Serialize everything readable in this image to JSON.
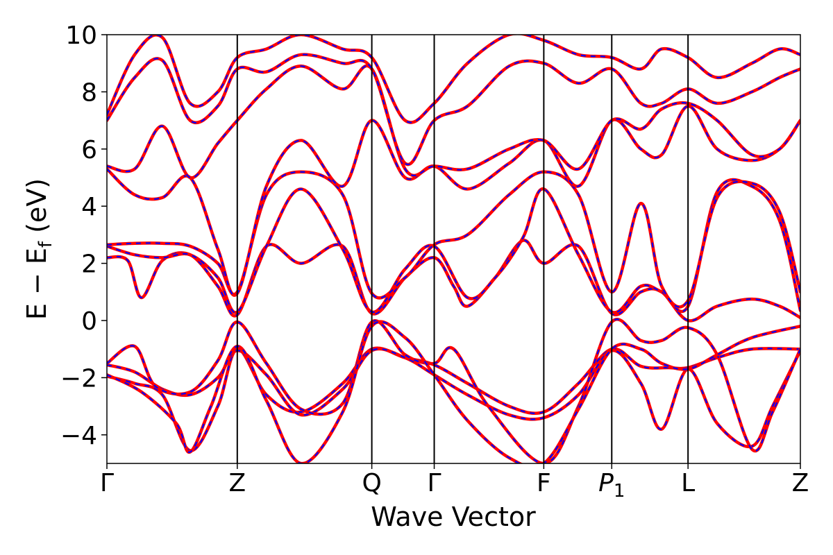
{
  "chart_data": {
    "type": "line",
    "title": "",
    "xlabel": "Wave Vector",
    "ylabel": "E − E_f (eV)",
    "ylabel_main": "E − E",
    "ylabel_sub": "f",
    "ylabel_unit": " (eV)",
    "ylim": [
      -5,
      10
    ],
    "yticks": [
      -4,
      -2,
      0,
      2,
      4,
      6,
      8,
      10
    ],
    "ytick_labels": [
      "−4",
      "−2",
      "0",
      "2",
      "4",
      "6",
      "8",
      "10"
    ],
    "xlim": [
      0,
      1
    ],
    "grid": false,
    "kpoints": [
      {
        "label": "Γ",
        "pos": 0.0
      },
      {
        "label": "Z",
        "pos": 0.188
      },
      {
        "label": "Q",
        "pos": 0.382
      },
      {
        "label": "Γ",
        "pos": 0.472
      },
      {
        "label": "F",
        "pos": 0.63
      },
      {
        "label": "P",
        "sub": "1",
        "italic": true,
        "pos": 0.728
      },
      {
        "label": "L",
        "pos": 0.838
      },
      {
        "label": "Z",
        "pos": 1.0
      }
    ],
    "series_colors": {
      "red": "#ff0000",
      "blue": "#0000ff"
    },
    "bands": [
      [
        [
          0,
          -1.95
        ],
        [
          0.04,
          -2.2
        ],
        [
          0.08,
          -2.6
        ],
        [
          0.12,
          -4.55
        ],
        [
          0.16,
          -3.0
        ],
        [
          0.188,
          -1.0
        ],
        [
          0.23,
          -2.6
        ],
        [
          0.28,
          -3.2
        ],
        [
          0.34,
          -2.2
        ],
        [
          0.382,
          -1.0
        ],
        [
          0.43,
          -1.3
        ],
        [
          0.472,
          -1.55
        ],
        [
          0.52,
          -2.2
        ],
        [
          0.58,
          -3.0
        ],
        [
          0.63,
          -3.2
        ],
        [
          0.68,
          -2.2
        ],
        [
          0.728,
          -1.0
        ],
        [
          0.77,
          -1.6
        ],
        [
          0.81,
          -1.65
        ],
        [
          0.838,
          -1.65
        ],
        [
          0.88,
          -1.3
        ],
        [
          0.93,
          -1.0
        ],
        [
          1.0,
          -1.0
        ]
      ],
      [
        [
          0,
          -1.55
        ],
        [
          0.04,
          -1.8
        ],
        [
          0.08,
          -2.4
        ],
        [
          0.12,
          -2.6
        ],
        [
          0.16,
          -2.0
        ],
        [
          0.188,
          -1.05
        ],
        [
          0.23,
          -1.9
        ],
        [
          0.28,
          -3.3
        ],
        [
          0.34,
          -2.4
        ],
        [
          0.382,
          -1.05
        ],
        [
          0.43,
          -1.3
        ],
        [
          0.472,
          -1.9
        ],
        [
          0.52,
          -2.6
        ],
        [
          0.58,
          -3.3
        ],
        [
          0.63,
          -3.4
        ],
        [
          0.68,
          -2.6
        ],
        [
          0.728,
          -1.05
        ],
        [
          0.77,
          -2.2
        ],
        [
          0.8,
          -3.8
        ],
        [
          0.838,
          -1.7
        ],
        [
          0.88,
          -3.6
        ],
        [
          0.93,
          -4.4
        ],
        [
          0.96,
          -3.0
        ],
        [
          1.0,
          -1.05
        ]
      ],
      [
        [
          0,
          -1.5
        ],
        [
          0.04,
          -0.9
        ],
        [
          0.07,
          -2.3
        ],
        [
          0.12,
          -2.5
        ],
        [
          0.16,
          -1.4
        ],
        [
          0.188,
          -0.05
        ],
        [
          0.23,
          -1.5
        ],
        [
          0.28,
          -3.1
        ],
        [
          0.34,
          -2.9
        ],
        [
          0.382,
          -0.05
        ],
        [
          0.43,
          -1.2
        ],
        [
          0.472,
          -1.5
        ],
        [
          0.5,
          -1.0
        ],
        [
          0.55,
          -3.0
        ],
        [
          0.63,
          -5.0
        ],
        [
          0.68,
          -3.0
        ],
        [
          0.728,
          -0.05
        ],
        [
          0.77,
          -0.7
        ],
        [
          0.8,
          -0.7
        ],
        [
          0.838,
          -0.25
        ],
        [
          0.88,
          -1.2
        ],
        [
          0.93,
          -4.5
        ],
        [
          0.96,
          -3.2
        ],
        [
          1.0,
          -1.0
        ]
      ],
      [
        [
          0,
          -1.9
        ],
        [
          0.05,
          -2.5
        ],
        [
          0.1,
          -3.6
        ],
        [
          0.12,
          -4.6
        ],
        [
          0.15,
          -3.0
        ],
        [
          0.188,
          -0.9
        ],
        [
          0.23,
          -2.8
        ],
        [
          0.28,
          -5.0
        ],
        [
          0.34,
          -3.2
        ],
        [
          0.382,
          -0.2
        ],
        [
          0.43,
          -0.6
        ],
        [
          0.472,
          -1.9
        ],
        [
          0.52,
          -3.5
        ],
        [
          0.58,
          -4.8
        ],
        [
          0.63,
          -5.0
        ],
        [
          0.68,
          -3.1
        ],
        [
          0.728,
          -1.0
        ],
        [
          0.77,
          -1.0
        ],
        [
          0.8,
          -1.5
        ],
        [
          0.838,
          -1.7
        ],
        [
          0.88,
          -1.2
        ],
        [
          0.93,
          -0.6
        ],
        [
          1.0,
          -0.2
        ]
      ],
      [
        [
          0,
          2.2
        ],
        [
          0.03,
          2.1
        ],
        [
          0.05,
          0.8
        ],
        [
          0.08,
          2.1
        ],
        [
          0.12,
          2.3
        ],
        [
          0.16,
          1.2
        ],
        [
          0.188,
          0.2
        ],
        [
          0.23,
          2.6
        ],
        [
          0.28,
          2.0
        ],
        [
          0.34,
          2.6
        ],
        [
          0.382,
          0.25
        ],
        [
          0.43,
          1.5
        ],
        [
          0.472,
          2.2
        ],
        [
          0.5,
          1.2
        ],
        [
          0.52,
          0.5
        ],
        [
          0.56,
          1.5
        ],
        [
          0.6,
          2.8
        ],
        [
          0.63,
          2.0
        ],
        [
          0.68,
          2.6
        ],
        [
          0.728,
          0.25
        ],
        [
          0.77,
          1.0
        ],
        [
          0.8,
          1.0
        ],
        [
          0.838,
          0.0
        ],
        [
          0.88,
          0.5
        ],
        [
          0.93,
          0.75
        ],
        [
          0.97,
          0.5
        ],
        [
          1.0,
          0.1
        ]
      ],
      [
        [
          0,
          2.6
        ],
        [
          0.04,
          2.3
        ],
        [
          0.08,
          2.2
        ],
        [
          0.12,
          2.3
        ],
        [
          0.16,
          1.5
        ],
        [
          0.188,
          0.3
        ],
        [
          0.23,
          2.6
        ],
        [
          0.28,
          4.6
        ],
        [
          0.34,
          2.5
        ],
        [
          0.382,
          0.3
        ],
        [
          0.43,
          1.8
        ],
        [
          0.472,
          2.6
        ],
        [
          0.52,
          0.8
        ],
        [
          0.56,
          1.5
        ],
        [
          0.6,
          2.9
        ],
        [
          0.63,
          4.6
        ],
        [
          0.68,
          2.3
        ],
        [
          0.728,
          0.3
        ],
        [
          0.77,
          1.2
        ],
        [
          0.8,
          1.0
        ],
        [
          0.838,
          0.5
        ],
        [
          0.88,
          4.5
        ],
        [
          0.93,
          4.7
        ],
        [
          0.97,
          3.5
        ],
        [
          1.0,
          0.35
        ]
      ],
      [
        [
          0,
          2.65
        ],
        [
          0.04,
          2.7
        ],
        [
          0.08,
          2.7
        ],
        [
          0.12,
          2.6
        ],
        [
          0.16,
          2.0
        ],
        [
          0.188,
          1.0
        ],
        [
          0.23,
          4.4
        ],
        [
          0.28,
          5.2
        ],
        [
          0.34,
          4.4
        ],
        [
          0.382,
          0.95
        ],
        [
          0.43,
          1.5
        ],
        [
          0.472,
          2.65
        ],
        [
          0.52,
          3.0
        ],
        [
          0.58,
          4.4
        ],
        [
          0.63,
          5.2
        ],
        [
          0.68,
          4.4
        ],
        [
          0.728,
          1.0
        ],
        [
          0.77,
          4.1
        ],
        [
          0.8,
          1.2
        ],
        [
          0.838,
          0.7
        ],
        [
          0.88,
          4.3
        ],
        [
          0.93,
          4.8
        ],
        [
          0.97,
          3.8
        ],
        [
          1.0,
          1.0
        ]
      ],
      [
        [
          0,
          5.3
        ],
        [
          0.04,
          4.4
        ],
        [
          0.08,
          4.3
        ],
        [
          0.12,
          5.0
        ],
        [
          0.16,
          2.5
        ],
        [
          0.188,
          0.95
        ],
        [
          0.23,
          4.7
        ],
        [
          0.28,
          6.3
        ],
        [
          0.34,
          4.7
        ],
        [
          0.382,
          7.0
        ],
        [
          0.43,
          5.0
        ],
        [
          0.472,
          5.4
        ],
        [
          0.52,
          4.6
        ],
        [
          0.58,
          5.5
        ],
        [
          0.63,
          6.3
        ],
        [
          0.68,
          4.7
        ],
        [
          0.728,
          7.0
        ],
        [
          0.77,
          6.0
        ],
        [
          0.8,
          5.8
        ],
        [
          0.838,
          7.5
        ],
        [
          0.88,
          6.0
        ],
        [
          0.93,
          5.6
        ],
        [
          0.97,
          6.0
        ],
        [
          1.0,
          7.0
        ]
      ],
      [
        [
          0,
          5.4
        ],
        [
          0.04,
          5.3
        ],
        [
          0.08,
          6.8
        ],
        [
          0.12,
          5.0
        ],
        [
          0.16,
          6.2
        ],
        [
          0.188,
          7.0
        ],
        [
          0.23,
          8.1
        ],
        [
          0.28,
          8.9
        ],
        [
          0.34,
          8.1
        ],
        [
          0.382,
          8.8
        ],
        [
          0.43,
          5.3
        ],
        [
          0.472,
          5.4
        ],
        [
          0.52,
          5.3
        ],
        [
          0.58,
          6.0
        ],
        [
          0.63,
          6.3
        ],
        [
          0.68,
          5.3
        ],
        [
          0.728,
          7.0
        ],
        [
          0.77,
          6.7
        ],
        [
          0.8,
          7.4
        ],
        [
          0.838,
          7.6
        ],
        [
          0.88,
          7.0
        ],
        [
          0.93,
          5.8
        ],
        [
          0.97,
          6.0
        ],
        [
          1.0,
          7.0
        ]
      ],
      [
        [
          0,
          7.0
        ],
        [
          0.04,
          8.5
        ],
        [
          0.08,
          9.1
        ],
        [
          0.12,
          7.0
        ],
        [
          0.16,
          7.5
        ],
        [
          0.188,
          8.8
        ],
        [
          0.23,
          8.7
        ],
        [
          0.28,
          9.3
        ],
        [
          0.34,
          9.0
        ],
        [
          0.382,
          8.8
        ],
        [
          0.43,
          5.5
        ],
        [
          0.472,
          7.0
        ],
        [
          0.52,
          7.5
        ],
        [
          0.58,
          8.9
        ],
        [
          0.63,
          9.0
        ],
        [
          0.68,
          8.3
        ],
        [
          0.728,
          8.8
        ],
        [
          0.77,
          7.6
        ],
        [
          0.8,
          7.6
        ],
        [
          0.838,
          8.1
        ],
        [
          0.88,
          7.6
        ],
        [
          0.93,
          8.0
        ],
        [
          0.97,
          8.5
        ],
        [
          1.0,
          8.8
        ]
      ],
      [
        [
          0,
          7.2
        ],
        [
          0.04,
          9.3
        ],
        [
          0.08,
          9.9
        ],
        [
          0.12,
          7.6
        ],
        [
          0.16,
          8.0
        ],
        [
          0.188,
          9.2
        ],
        [
          0.23,
          9.5
        ],
        [
          0.28,
          10.0
        ],
        [
          0.34,
          9.5
        ],
        [
          0.382,
          9.2
        ],
        [
          0.43,
          7.0
        ],
        [
          0.472,
          7.6
        ],
        [
          0.52,
          9.0
        ],
        [
          0.58,
          10.0
        ],
        [
          0.63,
          9.8
        ],
        [
          0.68,
          9.3
        ],
        [
          0.728,
          9.2
        ],
        [
          0.77,
          8.8
        ],
        [
          0.8,
          9.5
        ],
        [
          0.838,
          9.2
        ],
        [
          0.88,
          8.5
        ],
        [
          0.93,
          9.0
        ],
        [
          0.97,
          9.5
        ],
        [
          1.0,
          9.3
        ]
      ]
    ]
  }
}
